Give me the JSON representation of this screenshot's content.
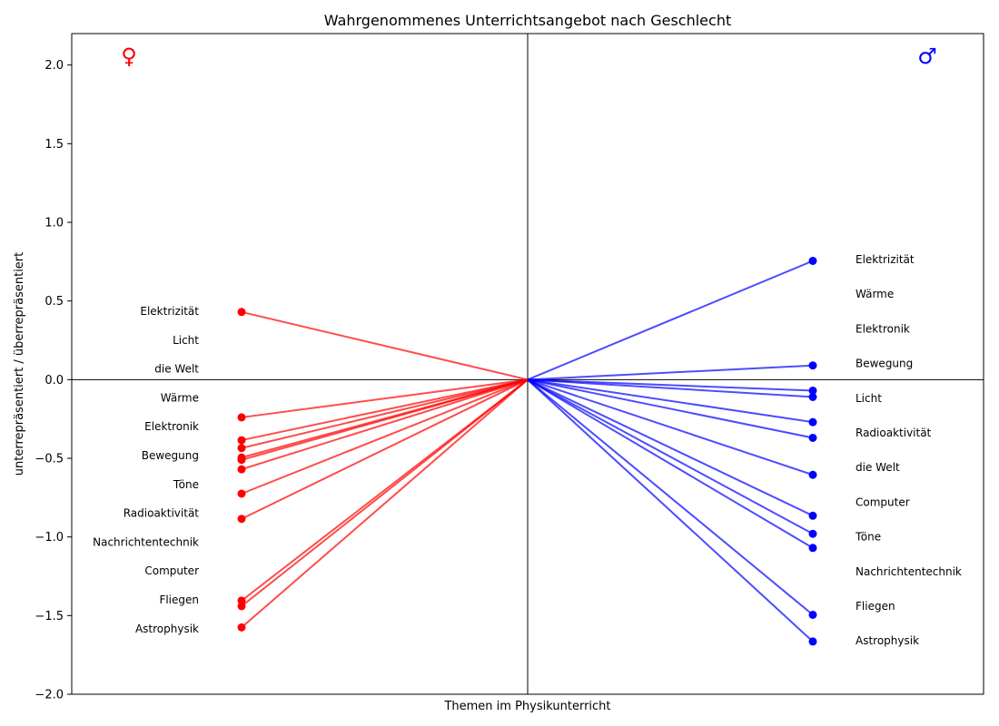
{
  "chart_data": {
    "type": "line",
    "title": "Wahrgenommenes Unterrichtsangebot nach Geschlecht",
    "xlabel": "Themen im Physikunterricht",
    "ylabel": "unterrepräsentiert / überrepräsentiert",
    "ylim": [
      -2.0,
      2.2
    ],
    "yticks": [
      -2.0,
      -1.5,
      -1.0,
      -0.5,
      0.0,
      0.5,
      1.0,
      1.5,
      2.0
    ],
    "grid": false,
    "female_symbol": "♀",
    "male_symbol": "♂",
    "colors": {
      "female": "#ff0000",
      "male": "#0000ff"
    },
    "female_labels": [
      "Elektrizität",
      "Licht",
      "die Welt",
      "Wärme",
      "Elektronik",
      "Bewegung",
      "Töne",
      "Radioaktivität",
      "Nachrichtentechnik",
      "Computer",
      "Fliegen",
      "Astrophysik"
    ],
    "female_values": [
      0.43,
      -0.24,
      -0.385,
      -0.435,
      -0.495,
      -0.51,
      -0.57,
      -0.725,
      -0.885,
      -1.405,
      -1.44,
      -1.575
    ],
    "male_labels": [
      "Elektrizität",
      "Wärme",
      "Elektronik",
      "Bewegung",
      "Licht",
      "Radioaktivität",
      "die Welt",
      "Computer",
      "Töne",
      "Nachrichtentechnik",
      "Fliegen",
      "Astrophysik"
    ],
    "male_values": [
      0.755,
      0.09,
      -0.07,
      -0.11,
      -0.27,
      -0.37,
      -0.605,
      -0.865,
      -0.98,
      -1.07,
      -1.495,
      -1.665
    ]
  }
}
